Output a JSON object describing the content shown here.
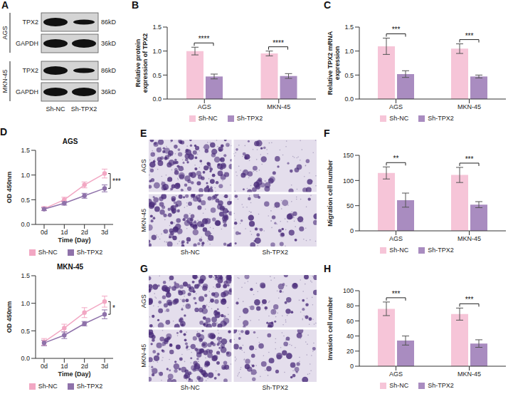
{
  "chart_data": [
    {
      "panel": "B",
      "type": "bar",
      "y_label": "Relative protein expression of TPX2",
      "categories": [
        "AGS",
        "MKN-45"
      ],
      "series": [
        {
          "name": "Sh-NC",
          "color": "#f6c5d8",
          "values": [
            1.0,
            0.95
          ],
          "errors": [
            0.08,
            0.05
          ]
        },
        {
          "name": "Sh-TPX2",
          "color": "#a98cc0",
          "values": [
            0.47,
            0.48
          ],
          "errors": [
            0.05,
            0.05
          ]
        }
      ],
      "ylim": [
        0,
        1.5
      ],
      "yticks": [
        {
          "value": 0,
          "label": "0.0"
        },
        {
          "value": 0.5,
          "label": "0.5"
        },
        {
          "value": 1,
          "label": "1.0"
        },
        {
          "value": 1.5,
          "label": "1.5"
        }
      ],
      "significance": [
        "****",
        "****"
      ],
      "legend": "bottom"
    },
    {
      "panel": "C",
      "type": "bar",
      "y_label": "Relative TPX2 mRNA expression",
      "categories": [
        "AGS",
        "MKN-45"
      ],
      "series": [
        {
          "name": "Sh-NC",
          "color": "#f6c5d8",
          "values": [
            1.1,
            1.05
          ],
          "errors": [
            0.17,
            0.1
          ]
        },
        {
          "name": "Sh-TPX2",
          "color": "#a98cc0",
          "values": [
            0.52,
            0.47
          ],
          "errors": [
            0.07,
            0.03
          ]
        }
      ],
      "ylim": [
        0,
        1.5
      ],
      "yticks": [
        {
          "value": 0,
          "label": "0.0"
        },
        {
          "value": 0.5,
          "label": "0.5"
        },
        {
          "value": 1,
          "label": "1.0"
        },
        {
          "value": 1.5,
          "label": "1.5"
        }
      ],
      "significance": [
        "***",
        "***"
      ],
      "legend": "bottom"
    },
    {
      "panel": "D",
      "type": "line",
      "title": "AGS",
      "x_label": "Time (Day)",
      "y_label": "OD 450nm",
      "categories": [
        "0d",
        "1d",
        "2d",
        "3d"
      ],
      "series": [
        {
          "name": "Sh-NC",
          "color": "#f2a7c3",
          "marker": "circle",
          "values": [
            0.32,
            0.5,
            0.8,
            1.03
          ],
          "errors": [
            0.04,
            0.05,
            0.06,
            0.09
          ]
        },
        {
          "name": "Sh-TPX2",
          "color": "#8f72aa",
          "marker": "circle",
          "values": [
            0.31,
            0.43,
            0.58,
            0.73
          ],
          "errors": [
            0.03,
            0.04,
            0.05,
            0.07
          ]
        }
      ],
      "ylim": [
        0,
        1.5
      ],
      "yticks": [
        {
          "value": 0,
          "label": "0.0"
        },
        {
          "value": 0.5,
          "label": "0.5"
        },
        {
          "value": 1,
          "label": "1.0"
        },
        {
          "value": 1.5,
          "label": "1.5"
        }
      ],
      "significance": "***",
      "legend": "bottom"
    },
    {
      "type": "line",
      "title": "MKN-45",
      "x_label": "Time (Day)",
      "y_label": "OD 450nm",
      "categories": [
        "0d",
        "1d",
        "2d",
        "3d"
      ],
      "series": [
        {
          "name": "Sh-NC",
          "color": "#f2a7c3",
          "marker": "circle",
          "values": [
            0.3,
            0.55,
            0.83,
            1.03
          ],
          "errors": [
            0.06,
            0.07,
            0.09,
            0.1
          ]
        },
        {
          "name": "Sh-TPX2",
          "color": "#8f72aa",
          "marker": "circle",
          "values": [
            0.28,
            0.42,
            0.63,
            0.8
          ],
          "errors": [
            0.05,
            0.06,
            0.04,
            0.08
          ]
        }
      ],
      "ylim": [
        0,
        1.5
      ],
      "yticks": [
        {
          "value": 0,
          "label": "0.0"
        },
        {
          "value": 0.5,
          "label": "0.5"
        },
        {
          "value": 1,
          "label": "1.0"
        },
        {
          "value": 1.5,
          "label": "1.5"
        }
      ],
      "significance": "*",
      "legend": "bottom"
    },
    {
      "panel": "F",
      "type": "bar",
      "y_label": "Migration cell number",
      "categories": [
        "AGS",
        "MKN-45"
      ],
      "series": [
        {
          "name": "Sh-NC",
          "color": "#f6c5d8",
          "values": [
            115,
            111
          ],
          "errors": [
            12,
            15
          ]
        },
        {
          "name": "Sh-TPX2",
          "color": "#a98cc0",
          "values": [
            61,
            52
          ],
          "errors": [
            14,
            6
          ]
        }
      ],
      "ylim": [
        0,
        150
      ],
      "yticks": [
        0,
        50,
        100,
        150
      ],
      "significance": [
        "**",
        "***"
      ],
      "legend": "bottom"
    },
    {
      "panel": "H",
      "type": "bar",
      "y_label": "Invasion cell number",
      "categories": [
        "AGS",
        "MKN-45"
      ],
      "series": [
        {
          "name": "Sh-NC",
          "color": "#f6c5d8",
          "values": [
            76,
            69
          ],
          "errors": [
            9,
            8
          ]
        },
        {
          "name": "Sh-TPX2",
          "color": "#a98cc0",
          "values": [
            34,
            30
          ],
          "errors": [
            6,
            5
          ]
        }
      ],
      "ylim": [
        0,
        100
      ],
      "yticks": [
        0,
        20,
        40,
        60,
        80,
        100
      ],
      "significance": [
        "***",
        "***"
      ],
      "legend": "bottom"
    }
  ],
  "blot": {
    "panel": "A",
    "cell_lines": [
      "AGS",
      "MKN-45"
    ],
    "proteins": [
      {
        "name": "TPX2",
        "size": "86kD"
      },
      {
        "name": "GAPDH",
        "size": "36kD"
      }
    ],
    "lanes": [
      "Sh-NC",
      "Sh-TPX2"
    ]
  },
  "micrographs": [
    {
      "panel": "E",
      "rows": [
        "AGS",
        "MKN-45"
      ],
      "columns": [
        "Sh-NC",
        "Sh-TPX2"
      ]
    },
    {
      "panel": "G",
      "rows": [
        "AGS",
        "MKN-45"
      ],
      "columns": [
        "Sh-NC",
        "Sh-TPX2"
      ]
    }
  ]
}
